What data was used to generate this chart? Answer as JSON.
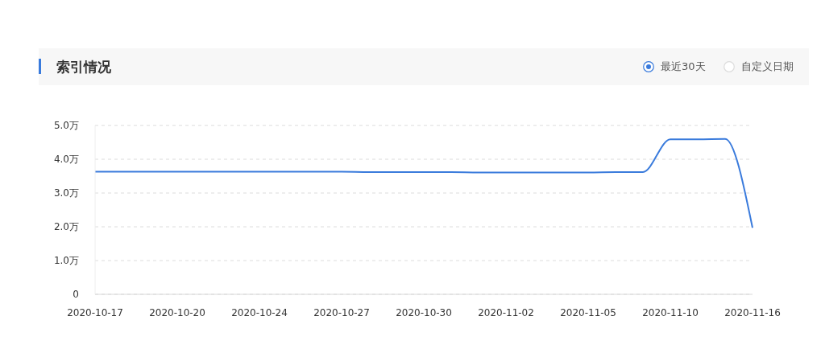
{
  "chart_data": {
    "type": "line",
    "title": "索引情况",
    "annotations": [
      "最近30天",
      "自定义日期"
    ],
    "categories": [
      "2020-10-17",
      null,
      null,
      "2020-10-20",
      null,
      null,
      "2020-10-24",
      null,
      null,
      "2020-10-27",
      null,
      null,
      "2020-10-30",
      null,
      null,
      "2020-11-02",
      null,
      null,
      "2020-11-05",
      null,
      null,
      "2020-11-10",
      null,
      null,
      "2020-11-16"
    ],
    "values": [
      3.63,
      3.63,
      3.63,
      3.63,
      3.63,
      3.63,
      3.63,
      3.63,
      3.63,
      3.63,
      3.62,
      3.62,
      3.62,
      3.62,
      3.61,
      3.61,
      3.61,
      3.61,
      3.61,
      3.62,
      3.62,
      4.59,
      4.59,
      4.6,
      1.97
    ],
    "color": "#3a7bdc",
    "ylim": [
      0,
      5
    ],
    "yticks": [
      0,
      {
        "value": 1,
        "label": "1.0万"
      },
      {
        "value": 2,
        "label": "2.0万"
      },
      {
        "value": 3,
        "label": "3.0万"
      },
      {
        "value": 4,
        "label": "4.0万"
      },
      {
        "value": 5,
        "label": "5.0万"
      }
    ],
    "grid": "y"
  }
}
